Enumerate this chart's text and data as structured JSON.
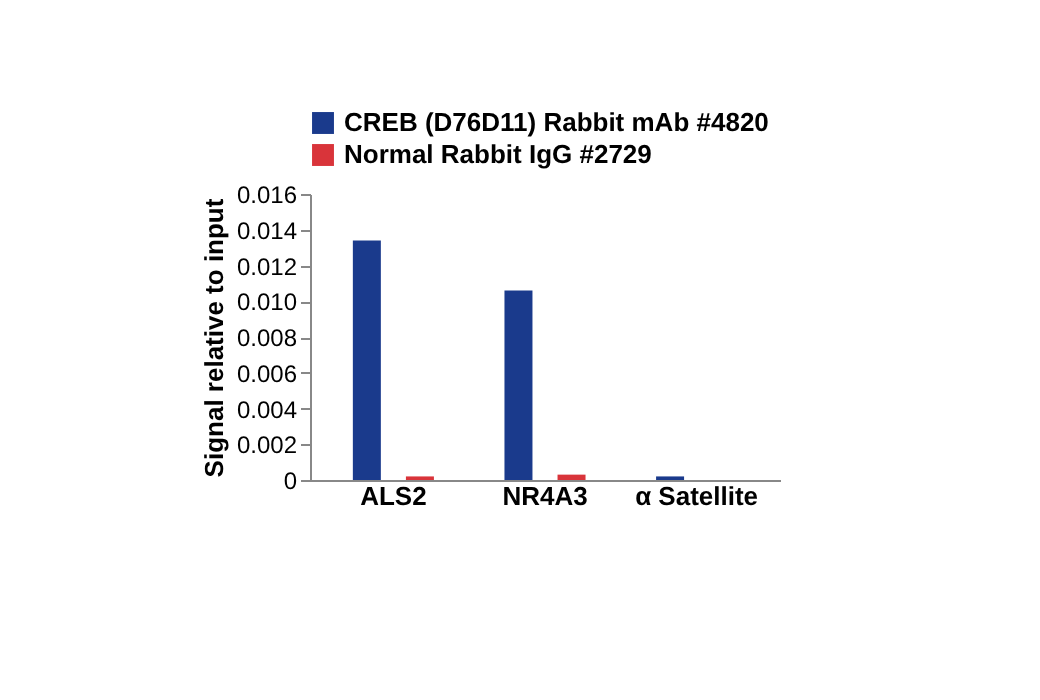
{
  "chart_data": {
    "type": "bar",
    "ylabel": "Signal relative to input",
    "categories": [
      "ALS2",
      "NR4A3",
      "α Satellite"
    ],
    "series": [
      {
        "name": "CREB (D76D11) Rabbit mAb #4820",
        "color": "#1a3a8c",
        "values": [
          0.0134,
          0.0106,
          0.0002
        ]
      },
      {
        "name": "Normal Rabbit IgG #2729",
        "color": "#d9343a",
        "values": [
          0.0002,
          0.0003,
          0
        ]
      }
    ],
    "ylim": [
      0,
      0.016
    ],
    "yticks": [
      {
        "value": 0,
        "label": "0"
      },
      {
        "value": 0.002,
        "label": "0.002"
      },
      {
        "value": 0.004,
        "label": "0.004"
      },
      {
        "value": 0.006,
        "label": "0.006"
      },
      {
        "value": 0.008,
        "label": "0.008"
      },
      {
        "value": 0.01,
        "label": "0.010"
      },
      {
        "value": 0.012,
        "label": "0.012"
      },
      {
        "value": 0.014,
        "label": "0.014"
      },
      {
        "value": 0.016,
        "label": "0.016"
      }
    ],
    "legend": "top",
    "grid": false
  }
}
